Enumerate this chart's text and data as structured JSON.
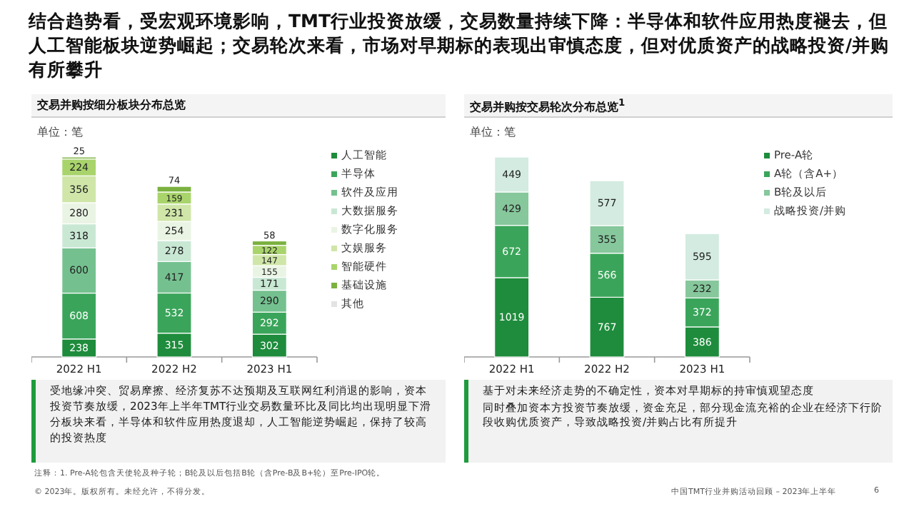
{
  "chart_data": [
    {
      "type": "bar",
      "title": "交易并购按细分板块分布总览",
      "subtitle": "单位：笔",
      "categories": [
        "2022 H1",
        "2022 H2",
        "2023 H1"
      ],
      "stacked": true,
      "data_labels": true,
      "legend": "right",
      "series": [
        {
          "name": "人工智能",
          "color": "#1e8c3c",
          "values": [
            238,
            315,
            302
          ]
        },
        {
          "name": "半导体",
          "color": "#3aa55a",
          "values": [
            608,
            532,
            292
          ]
        },
        {
          "name": "软件及应用",
          "color": "#74c18f",
          "values": [
            600,
            417,
            290
          ]
        },
        {
          "name": "大数据服务",
          "color": "#c9e8d4",
          "values": [
            318,
            278,
            171
          ]
        },
        {
          "name": "数字化服务",
          "color": "#eaf4e4",
          "values": [
            280,
            254,
            155
          ]
        },
        {
          "name": "文娱服务",
          "color": "#cfe6a8",
          "values": [
            356,
            231,
            147
          ]
        },
        {
          "name": "智能硬件",
          "color": "#a9d46c",
          "values": [
            224,
            159,
            122
          ]
        },
        {
          "name": "基础设施",
          "color": "#7bb13f",
          "values": [
            25,
            74,
            58
          ]
        },
        {
          "name": "其他",
          "color": "#e3e3e3",
          "values": [
            null,
            null,
            null
          ]
        }
      ],
      "annotations": [
        "结合趋势看，受宏观环境影响，TMT行业投资放缓，交易数量持续下降：半导体和软件应用热度褪去，但人工智能板块逆势崛起；交易轮次来看，市场对早期标的表现出审慎态度，但对优质资产的战略投资/并购有所攀升",
        "受地缘冲突、贸易摩擦、经济复苏不达预期及互联网红利消退的影响，资本投资节奏放缓，2023年上半年TMT行业交易数量环比及同比均出现明显下滑",
        "分板块来看，半导体和软件应用热度退却，人工智能逆势崛起，保持了较高的投资热度",
        "注释：1. Pre-A轮包含天使轮及种子轮；B轮及以后包括B轮（含Pre-B及B+轮）至Pre-IPO轮。",
        "© 2023年。版权所有。未经允许，不得分发。",
        "中国TMT行业并购活动回顾 – 2023年上半年",
        "6"
      ]
    },
    {
      "type": "bar",
      "title": "交易并购按交易轮次分布总览$^{1}$",
      "subtitle": "单位：笔",
      "categories": [
        "2022 H1",
        "2022 H2",
        "2023 H1"
      ],
      "stacked": true,
      "data_labels": true,
      "legend": "right",
      "series": [
        {
          "name": "Pre-A轮",
          "color": "#1e8c3c",
          "values": [
            1019,
            767,
            386
          ]
        },
        {
          "name": "A轮（含A+）",
          "color": "#3aa55a",
          "values": [
            672,
            566,
            372
          ]
        },
        {
          "name": "B轮及以后",
          "color": "#86c79c",
          "values": [
            429,
            355,
            232
          ]
        },
        {
          "name": "战略投资/并购",
          "color": "#d3ebe0",
          "values": [
            449,
            577,
            595
          ]
        }
      ],
      "annotations": [
        "基于对未来经济走势的不确定性，资本对早期标的持审慎观望态度",
        "同时叠加资本方投资节奏放缓，资金充足，部分现金流充裕的企业在经济下行阶段收购优质资产，导致战略投资/并购占比有所提升"
      ]
    }
  ]
}
